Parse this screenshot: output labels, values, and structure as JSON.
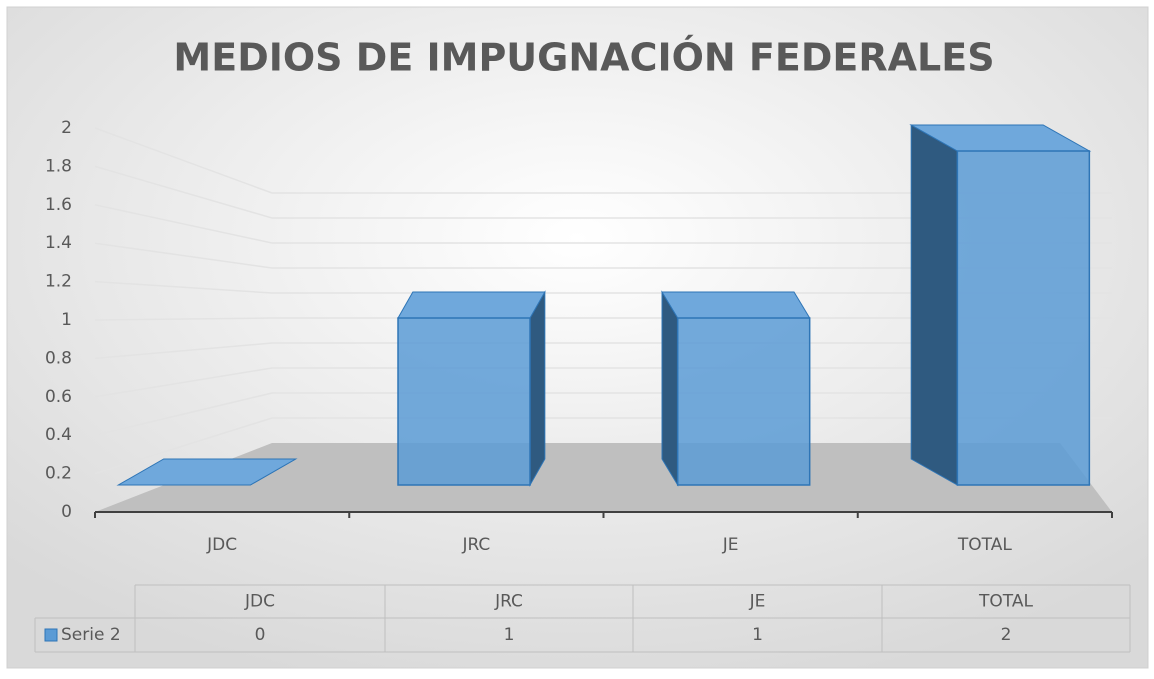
{
  "chart_data": {
    "type": "bar3d",
    "title": "MEDIOS DE IMPUGNACIÓN FEDERALES",
    "categories": [
      "JDC",
      "JRC",
      "JE",
      "TOTAL"
    ],
    "series": [
      {
        "name": "Serie 2",
        "color": "#5b9bd5",
        "values": [
          0,
          1,
          1,
          2
        ]
      }
    ],
    "ylim": [
      0,
      2
    ],
    "yticks": [
      0,
      0.2,
      0.4,
      0.6,
      0.8,
      1,
      1.2,
      1.4,
      1.6,
      1.8,
      2
    ],
    "grid": true,
    "data_table": true
  }
}
